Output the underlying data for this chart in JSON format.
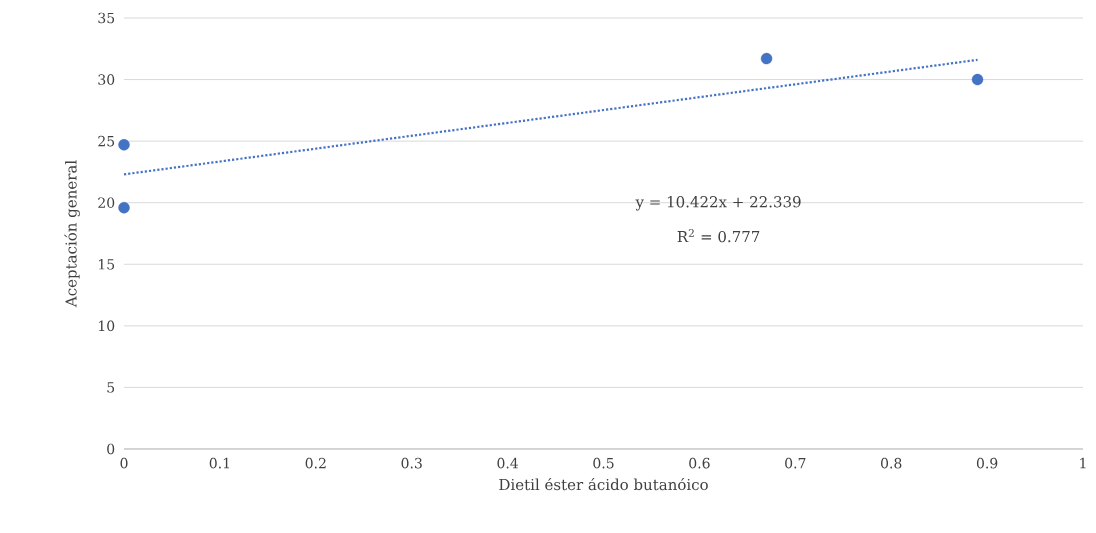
{
  "chart_data": {
    "type": "scatter",
    "xlabel": "Dietil éster ácido butanóico",
    "ylabel": "Aceptación general",
    "xlim": [
      0,
      1
    ],
    "xticks": [
      0,
      0.1,
      0.2,
      0.3,
      0.4,
      0.5,
      0.6,
      0.7,
      0.8,
      0.9,
      1
    ],
    "ylim": [
      0,
      35
    ],
    "yticks": [
      0,
      5,
      10,
      15,
      20,
      25,
      30,
      35
    ],
    "grid": "y",
    "series": [
      {
        "color": "#4472c4",
        "marker": "circle",
        "x": [
          0,
          0,
          0.67,
          0.89
        ],
        "values": [
          24.7,
          19.6,
          31.7,
          30
        ]
      },
      {
        "type": "line",
        "color": "#4472c4",
        "marker": "none",
        "line_style": "dotted",
        "x": [
          0,
          0.89
        ],
        "values": [
          22.3,
          31.6
        ]
      }
    ],
    "annotations": [
      "y = 10.422x + 22.339",
      "R$^{2}$ = 0.777"
    ]
  }
}
